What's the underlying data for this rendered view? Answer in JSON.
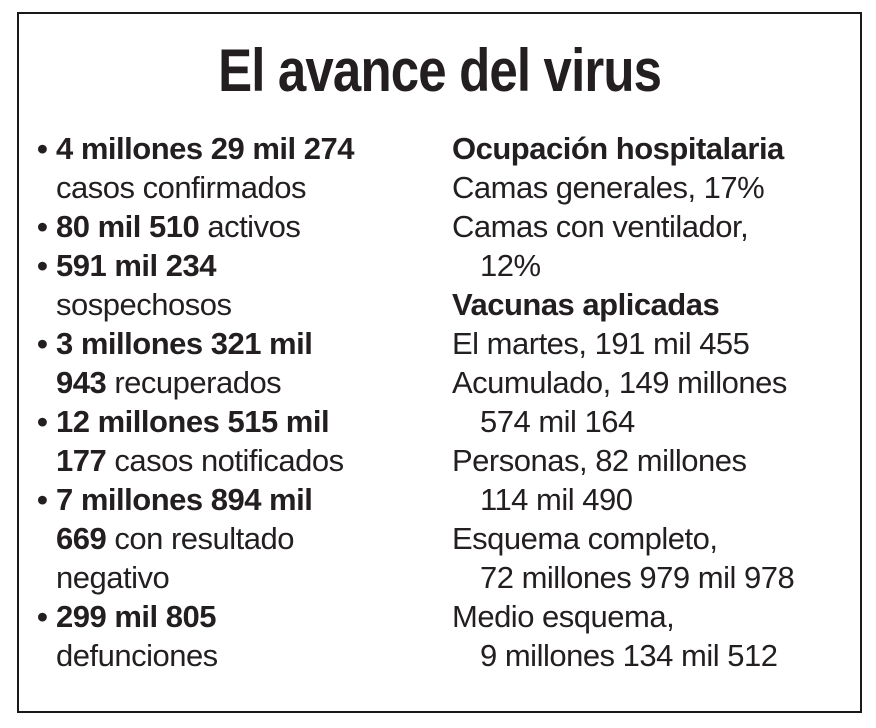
{
  "title": "El avance del virus",
  "colors": {
    "text": "#231f20",
    "border": "#1b1819",
    "background": "#ffffff"
  },
  "left_column": {
    "bullet_char": "•",
    "items": [
      {
        "lines": [
          {
            "bold": "4 millones 29 mil 274"
          },
          {
            "regular": "casos confirmados"
          }
        ]
      },
      {
        "lines": [
          {
            "bold": "80 mil 510",
            "regular": " activos"
          }
        ]
      },
      {
        "lines": [
          {
            "bold": "591 mil 234"
          },
          {
            "regular": "sospechosos"
          }
        ]
      },
      {
        "lines": [
          {
            "bold": "3 millones 321 mil"
          },
          {
            "bold2": "943",
            "regular": " recuperados"
          }
        ]
      },
      {
        "lines": [
          {
            "bold": "12 millones 515 mil"
          },
          {
            "bold2": "177",
            "regular": " casos notificados"
          }
        ]
      },
      {
        "lines": [
          {
            "bold": "7 millones 894 mil"
          },
          {
            "bold2": "669",
            "regular": " con resultado"
          },
          {
            "regular2": "negativo"
          }
        ]
      },
      {
        "lines": [
          {
            "bold": "299 mil 805"
          },
          {
            "regular": "defunciones"
          }
        ]
      }
    ]
  },
  "right_column": {
    "sections": [
      {
        "heading": "Ocupación hospitalaria",
        "entries": [
          {
            "lines": [
              "Camas generales, 17%"
            ]
          },
          {
            "lines": [
              "Camas con ventilador,",
              "12%"
            ]
          }
        ]
      },
      {
        "heading": "Vacunas aplicadas",
        "entries": [
          {
            "lines": [
              "El martes, 191 mil 455"
            ]
          },
          {
            "lines": [
              "Acumulado, 149 millones",
              "574 mil 164"
            ]
          },
          {
            "lines": [
              "Personas, 82 millones",
              "114 mil 490"
            ]
          },
          {
            "lines": [
              "Esquema completo,",
              "72 millones 979 mil 978"
            ]
          },
          {
            "lines": [
              "Medio esquema,",
              "9 millones 134 mil 512"
            ]
          }
        ]
      }
    ]
  }
}
